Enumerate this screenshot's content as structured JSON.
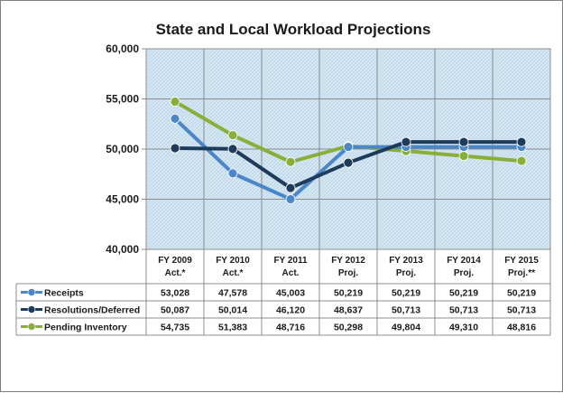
{
  "chart_data": {
    "type": "line",
    "title": "State and Local Workload Projections",
    "ylim": [
      40000,
      60000
    ],
    "yticks": [
      "40,000",
      "45,000",
      "50,000",
      "55,000",
      "60,000"
    ],
    "ytick_values": [
      40000,
      45000,
      50000,
      55000,
      60000
    ],
    "categories": [
      [
        "FY 2009",
        "Act.*"
      ],
      [
        "FY 2010",
        "Act.*"
      ],
      [
        "FY 2011",
        "Act."
      ],
      [
        "FY 2012",
        "Proj."
      ],
      [
        "FY 2013",
        "Proj."
      ],
      [
        "FY 2014",
        "Proj."
      ],
      [
        "FY 2015",
        "Proj.**"
      ]
    ],
    "grid": true,
    "legend_placement": "data-table-left",
    "series": [
      {
        "name": "Receipts",
        "color": "#4a86c8",
        "values": [
          53028,
          47578,
          45003,
          50219,
          50219,
          50219,
          50219
        ],
        "labels": [
          "53,028",
          "47,578",
          "45,003",
          "50,219",
          "50,219",
          "50,219",
          "50,219"
        ]
      },
      {
        "name": "Resolutions/Deferred",
        "color": "#1f3b5c",
        "values": [
          50087,
          50014,
          46120,
          48637,
          50713,
          50713,
          50713
        ],
        "labels": [
          "50,087",
          "50,014",
          "46,120",
          "48,637",
          "50,713",
          "50,713",
          "50,713"
        ]
      },
      {
        "name": "Pending Inventory",
        "color": "#8aae3a",
        "values": [
          54735,
          51383,
          48716,
          50298,
          49804,
          49310,
          48816
        ],
        "labels": [
          "54,735",
          "51,383",
          "48,716",
          "50,298",
          "49,804",
          "49,310",
          "48,816"
        ]
      }
    ]
  }
}
